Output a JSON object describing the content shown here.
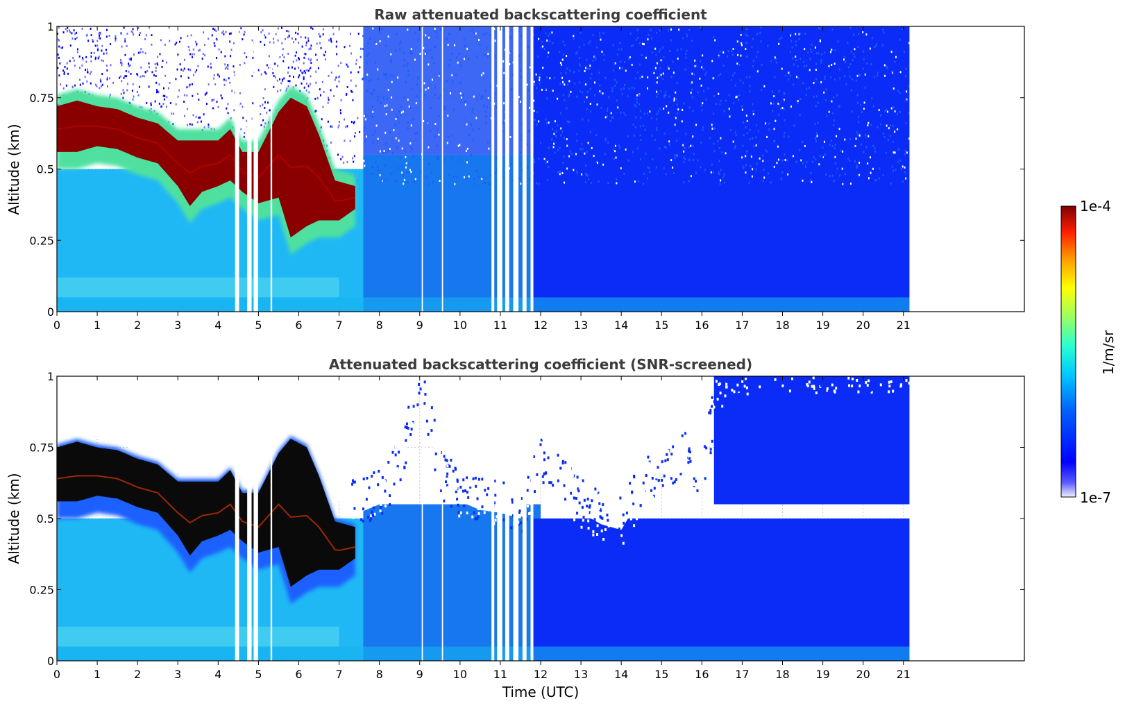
{
  "chart_data": [
    {
      "type": "heatmap",
      "title": "Raw attenuated backscattering coefficient",
      "xlabel": "",
      "ylabel": "Altitude (km)",
      "xlim": [
        0,
        24
      ],
      "ylim": [
        0,
        1
      ],
      "x_ticks": [
        "0",
        "1",
        "2",
        "3",
        "4",
        "5",
        "6",
        "7",
        "8",
        "9",
        "10",
        "11",
        "12",
        "13",
        "14",
        "15",
        "16",
        "17",
        "18",
        "19",
        "20",
        "21"
      ],
      "y_ticks": [
        "0",
        "0.25",
        "0.5",
        "0.75",
        "1"
      ],
      "y_tick_values": [
        0,
        0.25,
        0.5,
        0.75,
        1
      ],
      "data_time_end": 21.15,
      "grid": "horizontal",
      "screened": false,
      "cloud_top": [
        [
          0,
          0.72
        ],
        [
          0.5,
          0.74
        ],
        [
          1,
          0.72
        ],
        [
          1.5,
          0.71
        ],
        [
          2,
          0.68
        ],
        [
          2.5,
          0.66
        ],
        [
          3,
          0.6
        ],
        [
          3.5,
          0.6
        ],
        [
          4,
          0.6
        ],
        [
          4.3,
          0.64
        ],
        [
          4.6,
          0.56
        ],
        [
          5,
          0.56
        ],
        [
          5.5,
          0.7
        ],
        [
          5.8,
          0.75
        ],
        [
          6.2,
          0.72
        ],
        [
          6.5,
          0.62
        ],
        [
          6.9,
          0.46
        ],
        [
          7.4,
          0.44
        ]
      ],
      "cloud_base": [
        [
          0,
          0.56
        ],
        [
          0.5,
          0.56
        ],
        [
          1,
          0.58
        ],
        [
          1.5,
          0.57
        ],
        [
          2,
          0.54
        ],
        [
          2.5,
          0.52
        ],
        [
          3,
          0.44
        ],
        [
          3.3,
          0.37
        ],
        [
          3.6,
          0.42
        ],
        [
          4,
          0.44
        ],
        [
          4.3,
          0.46
        ],
        [
          4.6,
          0.42
        ],
        [
          5,
          0.38
        ],
        [
          5.5,
          0.4
        ],
        [
          5.8,
          0.26
        ],
        [
          6.2,
          0.3
        ],
        [
          6.5,
          0.32
        ],
        [
          7,
          0.32
        ],
        [
          7.4,
          0.36
        ]
      ],
      "gap_intervals": [
        [
          4.42,
          4.52
        ],
        [
          4.72,
          4.83
        ],
        [
          4.88,
          4.99
        ],
        [
          5.3,
          5.34
        ],
        [
          9.05,
          9.08
        ],
        [
          9.55,
          9.58
        ],
        [
          10.78,
          10.85
        ],
        [
          10.92,
          11.05
        ],
        [
          11.12,
          11.22
        ],
        [
          11.32,
          11.45
        ],
        [
          11.55,
          11.65
        ],
        [
          11.75,
          11.82
        ]
      ]
    },
    {
      "type": "heatmap",
      "title": "Attenuated backscattering coefficient (SNR-screened)",
      "xlabel": "Time (UTC)",
      "ylabel": "Altitude (km)",
      "xlim": [
        0,
        24
      ],
      "ylim": [
        0,
        1
      ],
      "x_ticks": [
        "0",
        "1",
        "2",
        "3",
        "4",
        "5",
        "6",
        "7",
        "8",
        "9",
        "10",
        "11",
        "12",
        "13",
        "14",
        "15",
        "16",
        "17",
        "18",
        "19",
        "20",
        "21"
      ],
      "y_ticks": [
        "0",
        "0.25",
        "0.5",
        "0.75",
        "1"
      ],
      "y_tick_values": [
        0,
        0.25,
        0.5,
        0.75,
        1
      ],
      "data_time_end": 21.15,
      "grid": "both",
      "screened": true,
      "screen_top": [
        [
          0,
          0.74
        ],
        [
          1,
          0.79
        ],
        [
          2,
          0.74
        ],
        [
          3,
          0.66
        ],
        [
          4,
          0.64
        ],
        [
          4.3,
          0.66
        ],
        [
          4.6,
          0.6
        ],
        [
          5,
          0.6
        ],
        [
          5.5,
          0.72
        ],
        [
          5.9,
          0.78
        ],
        [
          6.2,
          0.72
        ],
        [
          6.5,
          0.64
        ],
        [
          7,
          0.56
        ],
        [
          7.5,
          0.52
        ],
        [
          8,
          0.55
        ],
        [
          8.5,
          0.66
        ],
        [
          9,
          0.98
        ],
        [
          9.5,
          0.62
        ],
        [
          10,
          0.56
        ],
        [
          10.5,
          0.53
        ],
        [
          11,
          0.52
        ],
        [
          11.5,
          0.5
        ],
        [
          12,
          0.68
        ],
        [
          12.5,
          0.6
        ],
        [
          13,
          0.52
        ],
        [
          13.5,
          0.48
        ],
        [
          14,
          0.46
        ],
        [
          14.5,
          0.58
        ],
        [
          15,
          0.66
        ],
        [
          15.5,
          0.7
        ],
        [
          16,
          0.64
        ],
        [
          16.3,
          0.86
        ],
        [
          16.6,
          0.98
        ],
        [
          17.5,
          1
        ],
        [
          21.15,
          1
        ]
      ],
      "gap_intervals": [
        [
          4.42,
          4.52
        ],
        [
          4.72,
          4.83
        ],
        [
          4.88,
          4.99
        ],
        [
          5.3,
          5.34
        ],
        [
          9.05,
          9.08
        ],
        [
          9.55,
          9.58
        ],
        [
          10.78,
          10.85
        ],
        [
          10.92,
          11.05
        ],
        [
          11.12,
          11.22
        ],
        [
          11.32,
          11.45
        ],
        [
          11.55,
          11.65
        ],
        [
          11.75,
          11.82
        ]
      ]
    }
  ],
  "colorbar": {
    "label": "1/m/sr",
    "max_label": "1e-4",
    "min_label": "1e-7",
    "vmin": 1e-07,
    "vmax": 0.0001,
    "scale": "log",
    "colormap": "jet"
  }
}
